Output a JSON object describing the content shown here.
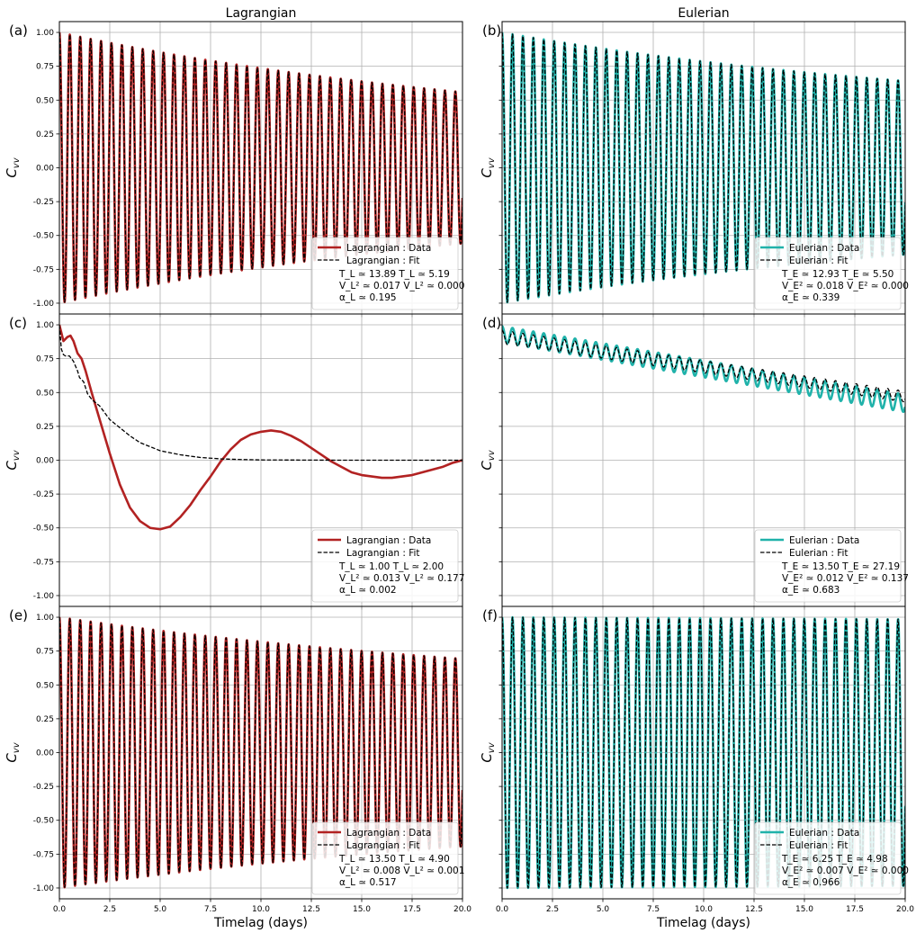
{
  "column_titles": [
    "Lagrangian",
    "Eulerian"
  ],
  "x_label": "Timelag (days)",
  "y_label_base": "C",
  "y_label_sub": "vv",
  "x_ticks": [
    0.0,
    2.5,
    5.0,
    7.5,
    10.0,
    12.5,
    15.0,
    17.5,
    20.0
  ],
  "y_ticks": [
    1.0,
    0.75,
    0.5,
    0.25,
    0.0,
    -0.25,
    -0.5,
    -0.75,
    -1.0
  ],
  "colors": {
    "lagrangian": "#b22222",
    "eulerian": "#20b2aa",
    "fit": "#000000",
    "grid": "#b0b0b0"
  },
  "chart_data": [
    {
      "type": "line",
      "panel": "(a)",
      "column": "Lagrangian",
      "xlim": [
        0,
        20
      ],
      "ylim": [
        -1.08,
        1.08
      ],
      "grid": true,
      "legend_position": "bottom-right",
      "series": [
        {
          "name": "Lagrangian : Data",
          "style": "solid",
          "color": "#b22222",
          "period_days": 0.517,
          "decay_days": 25.0,
          "floor": 0.2
        },
        {
          "name": "Lagrangian : Fit",
          "style": "dashed",
          "color": "#000000",
          "period_days": 0.517,
          "decay_days": 25.0,
          "floor": 0.2
        }
      ],
      "annotation": [
        "T_L ≃ 13.89   T_L ≃ 5.19",
        "V_L² ≃ 0.017   V_L² ≃ 0.000",
        "α_L ≃ 0.195"
      ]
    },
    {
      "type": "line",
      "panel": "(b)",
      "column": "Eulerian",
      "xlim": [
        0,
        20
      ],
      "ylim": [
        -1.08,
        1.08
      ],
      "grid": true,
      "legend_position": "bottom-right",
      "series": [
        {
          "name": "Eulerian : Data",
          "style": "solid",
          "color": "#20b2aa",
          "period_days": 0.517,
          "decay_days": 25.0,
          "floor": 0.35
        },
        {
          "name": "Eulerian : Fit",
          "style": "dashed",
          "color": "#000000",
          "period_days": 0.517,
          "decay_days": 25.0,
          "floor": 0.35
        }
      ],
      "annotation": [
        "T_E ≃ 12.93   T_E ≃ 5.50",
        "V_E² ≃ 0.018   V_E² ≃ 0.000",
        "α_E ≃ 0.339"
      ]
    },
    {
      "type": "line",
      "panel": "(c)",
      "column": "Lagrangian",
      "xlim": [
        0,
        20
      ],
      "ylim": [
        -1.08,
        1.08
      ],
      "grid": true,
      "legend_position": "bottom-right",
      "series": [
        {
          "name": "Lagrangian : Data",
          "style": "solid",
          "color": "#b22222",
          "x": [
            0,
            0.2,
            0.4,
            0.55,
            0.7,
            0.9,
            1.1,
            1.3,
            1.6,
            2.0,
            2.5,
            3.0,
            3.5,
            4.0,
            4.5,
            5.0,
            5.5,
            6.0,
            6.5,
            7.0,
            7.5,
            8.0,
            8.5,
            9.0,
            9.5,
            10.0,
            10.5,
            11.0,
            11.5,
            12.0,
            12.5,
            13.0,
            13.5,
            14.0,
            14.5,
            15.0,
            15.5,
            16.0,
            16.5,
            17.0,
            17.5,
            18.0,
            18.5,
            19.0,
            19.5,
            20.0
          ],
          "y": [
            1.0,
            0.88,
            0.91,
            0.92,
            0.88,
            0.79,
            0.75,
            0.66,
            0.5,
            0.3,
            0.05,
            -0.18,
            -0.35,
            -0.45,
            -0.5,
            -0.51,
            -0.49,
            -0.42,
            -0.33,
            -0.22,
            -0.12,
            -0.01,
            0.08,
            0.15,
            0.19,
            0.21,
            0.22,
            0.21,
            0.18,
            0.14,
            0.09,
            0.04,
            -0.01,
            -0.05,
            -0.09,
            -0.11,
            -0.12,
            -0.13,
            -0.13,
            -0.12,
            -0.11,
            -0.09,
            -0.07,
            -0.05,
            -0.02,
            0.0
          ]
        },
        {
          "name": "Lagrangian : Fit",
          "style": "dashed",
          "color": "#000000",
          "x": [
            0,
            0.1,
            0.2,
            0.3,
            0.5,
            0.7,
            0.9,
            1.0,
            1.2,
            1.4,
            1.6,
            2.0,
            2.5,
            3.0,
            3.5,
            4.0,
            5.0,
            6.0,
            7.0,
            8.0,
            9.0,
            10.0,
            12.0,
            14.0,
            16.0,
            18.0,
            20.0
          ],
          "y": [
            1.0,
            0.82,
            0.78,
            0.77,
            0.77,
            0.73,
            0.66,
            0.61,
            0.58,
            0.49,
            0.45,
            0.4,
            0.3,
            0.24,
            0.18,
            0.13,
            0.07,
            0.04,
            0.02,
            0.01,
            0.005,
            0.002,
            0.001,
            0.0,
            0.0,
            0.0,
            0.0
          ]
        }
      ],
      "annotation": [
        "T_L ≃ 1.00   T_L ≃ 2.00",
        "V_L² ≃ 0.013   V_L² ≃ 0.177",
        "α_L ≃ 0.002"
      ]
    },
    {
      "type": "line",
      "panel": "(d)",
      "column": "Eulerian",
      "xlim": [
        0,
        20
      ],
      "ylim": [
        -1.08,
        1.08
      ],
      "grid": true,
      "legend_position": "bottom-right",
      "series": [
        {
          "name": "Eulerian : Data",
          "style": "solid",
          "color": "#20b2aa",
          "period_days": 0.517,
          "trend_start": 0.93,
          "trend_end": 0.42,
          "amp_start": 0.06,
          "amp_end": 0.065
        },
        {
          "name": "Eulerian : Fit",
          "style": "dashed",
          "color": "#000000",
          "period_days": 0.517,
          "trend_start": 0.91,
          "trend_end": 0.47,
          "amp_start": 0.05,
          "amp_end": 0.04
        }
      ],
      "annotation": [
        "T_E ≃ 13.50   T_E ≃ 27.19",
        "V_E² ≃ 0.012   V_E² ≃ 0.137",
        "α_E ≃ 0.683"
      ]
    },
    {
      "type": "line",
      "panel": "(e)",
      "column": "Lagrangian",
      "xlim": [
        0,
        20
      ],
      "ylim": [
        -1.08,
        1.08
      ],
      "grid": true,
      "legend_position": "bottom-right",
      "series": [
        {
          "name": "Lagrangian : Data",
          "style": "solid",
          "color": "#b22222",
          "period_days": 0.517,
          "decay_days": 28.0,
          "floor": 0.4
        },
        {
          "name": "Lagrangian : Fit",
          "style": "dashed",
          "color": "#000000",
          "period_days": 0.517,
          "decay_days": 28.0,
          "floor": 0.4
        }
      ],
      "annotation": [
        "T_L ≃ 13.50   T_L ≃ 4.90",
        "V_L² ≃ 0.008   V_L² ≃ 0.001",
        "α_L ≃ 0.517"
      ]
    },
    {
      "type": "line",
      "panel": "(f)",
      "column": "Eulerian",
      "xlim": [
        0,
        20
      ],
      "ylim": [
        -1.08,
        1.08
      ],
      "grid": true,
      "legend_position": "bottom-right",
      "series": [
        {
          "name": "Eulerian : Data",
          "style": "solid",
          "color": "#20b2aa",
          "period_days": 0.517,
          "decay_days": 200.0,
          "floor": 0.85
        },
        {
          "name": "Eulerian : Fit",
          "style": "dashed",
          "color": "#000000",
          "period_days": 0.517,
          "decay_days": 200.0,
          "floor": 0.85
        }
      ],
      "annotation": [
        "T_E ≃ 6.25   T_E ≃ 4.98",
        "V_E² ≃ 0.007   V_E² ≃ 0.000",
        "α_E ≃ 0.966"
      ]
    }
  ]
}
